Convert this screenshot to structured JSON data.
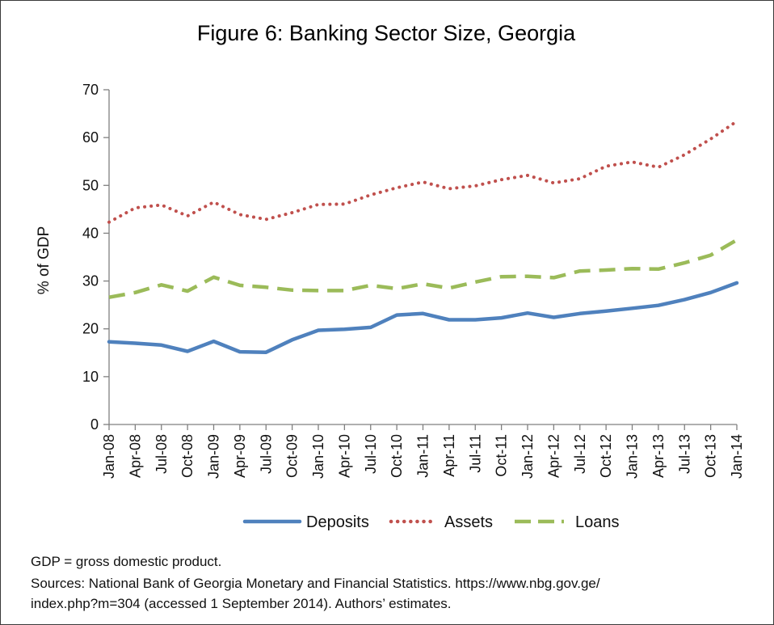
{
  "chart_data": {
    "type": "line",
    "title": "Figure 6: Banking Sector Size, Georgia",
    "ylabel": "% of GDP",
    "xlabel": "",
    "ylim": [
      0,
      70
    ],
    "yticks": [
      "0",
      "10",
      "20",
      "30",
      "40",
      "50",
      "60",
      "70"
    ],
    "grid": false,
    "legend_position": "bottom",
    "x_labels": [
      "Jan-08",
      "Apr-08",
      "Jul-08",
      "Oct-08",
      "Jan-09",
      "Apr-09",
      "Jul-09",
      "Oct-09",
      "Jan-10",
      "Apr-10",
      "Jul-10",
      "Oct-10",
      "Jan-11",
      "Apr-11",
      "Jul-11",
      "Oct-11",
      "Jan-12",
      "Apr-12",
      "Jul-12",
      "Oct-12",
      "Jan-13",
      "Apr-13",
      "Jul-13",
      "Oct-13",
      "Jan-14"
    ],
    "series": [
      {
        "name": "Deposits",
        "color": "#4f81bd",
        "style": "solid",
        "values": [
          17.3,
          17.0,
          16.6,
          15.3,
          17.4,
          15.2,
          15.1,
          17.7,
          19.7,
          19.9,
          20.3,
          22.9,
          23.2,
          21.9,
          21.9,
          22.3,
          23.3,
          22.4,
          23.2,
          23.7,
          24.3,
          24.9,
          26.1,
          27.6,
          29.6
        ]
      },
      {
        "name": "Assets",
        "color": "#c0504d",
        "style": "dotted",
        "values": [
          42.3,
          45.3,
          45.9,
          43.6,
          46.5,
          43.9,
          42.9,
          44.3,
          46.0,
          46.1,
          48.0,
          49.5,
          50.7,
          49.3,
          49.9,
          51.2,
          52.1,
          50.5,
          51.4,
          54.0,
          54.9,
          53.8,
          56.4,
          59.7,
          63.4
        ]
      },
      {
        "name": "Loans",
        "color": "#9bbb59",
        "style": "dashed",
        "values": [
          26.6,
          27.6,
          29.2,
          27.9,
          30.8,
          29.1,
          28.7,
          28.1,
          28.0,
          28.0,
          29.1,
          28.4,
          29.4,
          28.5,
          29.8,
          30.9,
          31.0,
          30.7,
          32.1,
          32.3,
          32.6,
          32.5,
          33.8,
          35.4,
          38.6
        ]
      }
    ]
  },
  "footnotes": {
    "line1": "GDP = gross domestic product.",
    "line2": "Sources: National Bank of Georgia Monetary and Financial Statistics. https://www.nbg.gov.ge/",
    "line3": "index.php?m=304 (accessed 1 September 2014). Authors’ estimates."
  }
}
